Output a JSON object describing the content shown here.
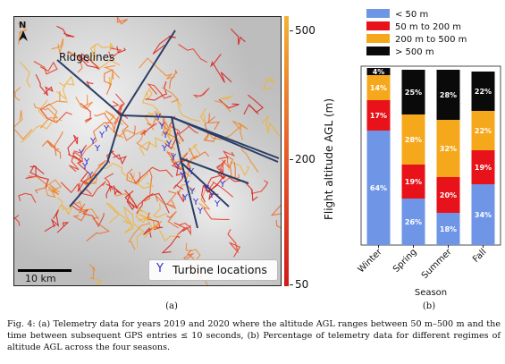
{
  "figure_a": {
    "north_label": "N",
    "ridgelines_label": "Ridgelines",
    "scale_label": "10 km",
    "legend_marker": "Y",
    "legend_label": "Turbine locations",
    "colorbar": {
      "ticks": [
        "500",
        "200",
        "50"
      ],
      "axis_label": "Flight altitude AGL (m)",
      "colors": [
        "#f2b233",
        "#e65a2a",
        "#d01a1a"
      ]
    },
    "sublabel": "(a)"
  },
  "chart_data": {
    "type": "bar",
    "stacked": true,
    "categories": [
      "Winter",
      "Spring",
      "Summer",
      "Fall"
    ],
    "xlabel": "Season",
    "ylabel": "",
    "ylim": [
      0,
      100
    ],
    "legend_position": "top",
    "series": [
      {
        "name": "< 50 m",
        "color": "#6f96e6",
        "values": [
          64,
          26,
          18,
          34
        ],
        "labels": [
          "64%",
          "26%",
          "18%",
          "34%"
        ]
      },
      {
        "name": "50 m to 200 m",
        "color": "#e8131a",
        "values": [
          17,
          19,
          20,
          19
        ],
        "labels": [
          "17%",
          "19%",
          "20%",
          "19%"
        ]
      },
      {
        "name": "200 m to 500 m",
        "color": "#f6a81c",
        "values": [
          14,
          28,
          32,
          22
        ],
        "labels": [
          "14%",
          "28%",
          "32%",
          "22%"
        ]
      },
      {
        "name": "> 500 m",
        "color": "#0a0a0a",
        "values": [
          4,
          25,
          28,
          22
        ],
        "labels": [
          "4%",
          "25%",
          "28%",
          "22%"
        ]
      }
    ]
  },
  "figure_b": {
    "sublabel": "(b)"
  },
  "caption": "Fig. 4: (a) Telemetry data for years 2019 and 2020 where the altitude AGL ranges between 50 m–500 m and the time between subsequent GPS entries ≤ 10 seconds, (b) Percentage of telemetry data for different regimes of altitude AGL across the four seasons."
}
